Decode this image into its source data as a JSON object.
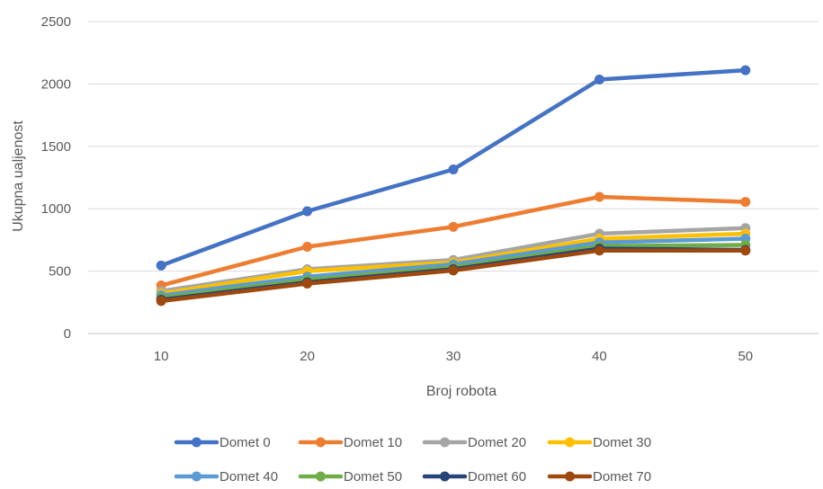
{
  "chart_data": {
    "type": "line",
    "title": "",
    "xlabel": "Broj robota",
    "ylabel": "Ukupna ualjenost",
    "categories": [
      "10",
      "20",
      "30",
      "40",
      "50"
    ],
    "ylim": [
      0,
      2500
    ],
    "yticks": [
      "0",
      "500",
      "1000",
      "1500",
      "2000",
      "2500"
    ],
    "grid": true,
    "legend_position": "bottom",
    "series": [
      {
        "name": "Domet 0",
        "color": "#4472C4",
        "values": [
          545,
          980,
          1315,
          2035,
          2110
        ]
      },
      {
        "name": "Domet 10",
        "color": "#ED7D31",
        "values": [
          385,
          695,
          855,
          1095,
          1055
        ]
      },
      {
        "name": "Domet 20",
        "color": "#A5A5A5",
        "values": [
          340,
          515,
          590,
          800,
          845
        ]
      },
      {
        "name": "Domet 30",
        "color": "#FFC000",
        "values": [
          320,
          500,
          570,
          760,
          800
        ]
      },
      {
        "name": "Domet 40",
        "color": "#5B9BD5",
        "values": [
          305,
          455,
          555,
          730,
          760
        ]
      },
      {
        "name": "Domet 50",
        "color": "#70AD47",
        "values": [
          285,
          430,
          530,
          700,
          710
        ]
      },
      {
        "name": "Domet 60",
        "color": "#264478",
        "values": [
          270,
          410,
          515,
          680,
          670
        ]
      },
      {
        "name": "Domet 70",
        "color": "#9E480E",
        "values": [
          260,
          400,
          505,
          665,
          665
        ]
      }
    ]
  }
}
